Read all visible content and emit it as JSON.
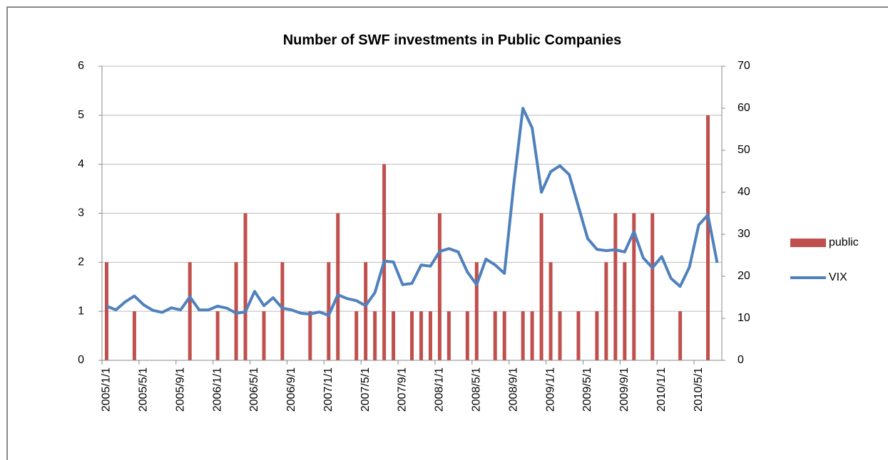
{
  "chart_data": {
    "type": "bar-line",
    "title": "Number of SWF investments in Public Companies",
    "categories": [
      "2005/1/1",
      null,
      null,
      null,
      "2005/5/1",
      null,
      null,
      null,
      "2005/9/1",
      null,
      null,
      null,
      "2006/1/1",
      null,
      null,
      null,
      "2006/5/1",
      null,
      null,
      null,
      "2006/9/1",
      null,
      null,
      null,
      "2007/1/1",
      null,
      null,
      null,
      "2007/5/1",
      null,
      null,
      null,
      "2007/9/1",
      null,
      null,
      null,
      "2008/1/1",
      null,
      null,
      null,
      "2008/5/1",
      null,
      null,
      null,
      "2008/9/1",
      null,
      null,
      null,
      "2009/1/1",
      null,
      null,
      null,
      "2009/5/1",
      null,
      null,
      null,
      "2009/9/1",
      null,
      null,
      null,
      "2010/1/1",
      null,
      null,
      null,
      "2010/5/1",
      null,
      null
    ],
    "series": [
      {
        "name": "public",
        "color": "#c0504d",
        "type": "bar",
        "values": [
          2,
          0,
          0,
          1,
          0,
          0,
          0,
          0,
          0,
          2,
          0,
          0,
          1,
          0,
          2,
          3,
          0,
          1,
          0,
          2,
          0,
          0,
          1,
          0,
          2,
          3,
          0,
          1,
          2,
          1,
          4,
          1,
          0,
          1,
          1,
          1,
          3,
          1,
          0,
          1,
          2,
          0,
          1,
          1,
          0,
          1,
          1,
          3,
          2,
          1,
          0,
          1,
          0,
          1,
          2,
          3,
          2,
          3,
          0,
          3,
          0,
          0,
          1,
          0,
          0,
          5,
          0
        ]
      },
      {
        "name": "VIX",
        "color": "#4f81bd",
        "type": "line",
        "axis": "y2",
        "values": [
          12.9,
          12,
          13.9,
          15.3,
          13.2,
          11.9,
          11.4,
          12.5,
          12,
          15.1,
          12,
          12,
          12.9,
          12.4,
          11.2,
          11.5,
          16.4,
          13,
          14.9,
          12.4,
          12,
          11.2,
          11,
          11.5,
          10.7,
          15.6,
          14.7,
          14.2,
          13,
          16.1,
          23.6,
          23.4,
          18,
          18.3,
          22.7,
          22.4,
          25.9,
          26.6,
          25.8,
          21,
          18,
          24.1,
          22.7,
          20.7,
          41.7,
          60,
          55.3,
          40,
          44.9,
          46.3,
          44.2,
          36.6,
          29,
          26.4,
          26.1,
          26.3,
          25.8,
          30.7,
          24.4,
          22,
          24.7,
          19.5,
          17.6,
          22.2,
          32.2,
          34.6,
          23.2
        ]
      }
    ],
    "ylim": [
      0,
      6
    ],
    "yticks": [
      0,
      1,
      2,
      3,
      4,
      5,
      6
    ],
    "y2lim": [
      0,
      70
    ],
    "y2ticks": [
      0,
      10,
      20,
      30,
      40,
      50,
      60,
      70
    ],
    "grid": true,
    "legend": "right"
  }
}
